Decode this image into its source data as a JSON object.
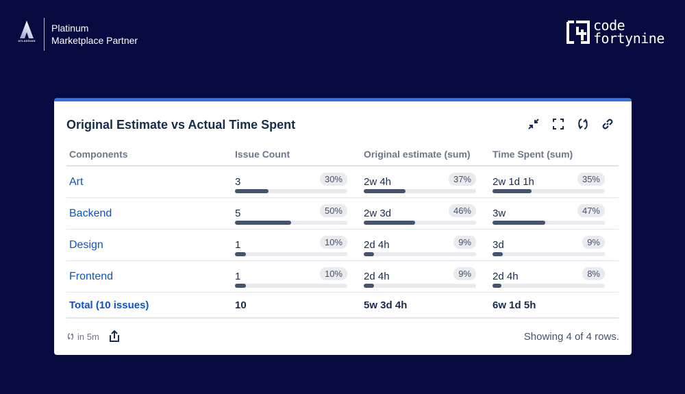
{
  "branding": {
    "atlassian_word": "ATLASSIAN",
    "partner_line1": "Platinum",
    "partner_line2": "Marketplace Partner",
    "vendor_line1": "code",
    "vendor_line2": "fortynine"
  },
  "colors": {
    "background": "#070a3e",
    "accent": "#2f6fe4",
    "link": "#0c52cc",
    "bar_fill": "#44546f",
    "bar_track": "#e9ebee"
  },
  "gadget": {
    "title": "Original Estimate vs Actual Time Spent",
    "actions": [
      "minimize-icon",
      "fullscreen-icon",
      "refresh-icon",
      "link-icon"
    ],
    "columns": [
      "Components",
      "Issue Count",
      "Original estimate (sum)",
      "Time Spent (sum)"
    ],
    "rows": [
      {
        "component": "Art",
        "issue_count": "3",
        "issue_pct": "30%",
        "issue_fill": 30,
        "estimate": "2w 4h",
        "estimate_pct": "37%",
        "estimate_fill": 37,
        "spent": "2w 1d 1h",
        "spent_pct": "35%",
        "spent_fill": 35
      },
      {
        "component": "Backend",
        "issue_count": "5",
        "issue_pct": "50%",
        "issue_fill": 50,
        "estimate": "2w 3d",
        "estimate_pct": "46%",
        "estimate_fill": 46,
        "spent": "3w",
        "spent_pct": "47%",
        "spent_fill": 47
      },
      {
        "component": "Design",
        "issue_count": "1",
        "issue_pct": "10%",
        "issue_fill": 10,
        "estimate": "2d 4h",
        "estimate_pct": "9%",
        "estimate_fill": 9,
        "spent": "3d",
        "spent_pct": "9%",
        "spent_fill": 9
      },
      {
        "component": "Frontend",
        "issue_count": "1",
        "issue_pct": "10%",
        "issue_fill": 10,
        "estimate": "2d 4h",
        "estimate_pct": "9%",
        "estimate_fill": 9,
        "spent": "2d 4h",
        "spent_pct": "8%",
        "spent_fill": 8
      }
    ],
    "total": {
      "label": "Total (10 issues)",
      "issue_count": "10",
      "estimate": "5w 3d 4h",
      "spent": "6w 1d 5h"
    },
    "footer": {
      "refresh_note": "in 5m",
      "showing": "Showing 4 of 4 rows."
    }
  }
}
